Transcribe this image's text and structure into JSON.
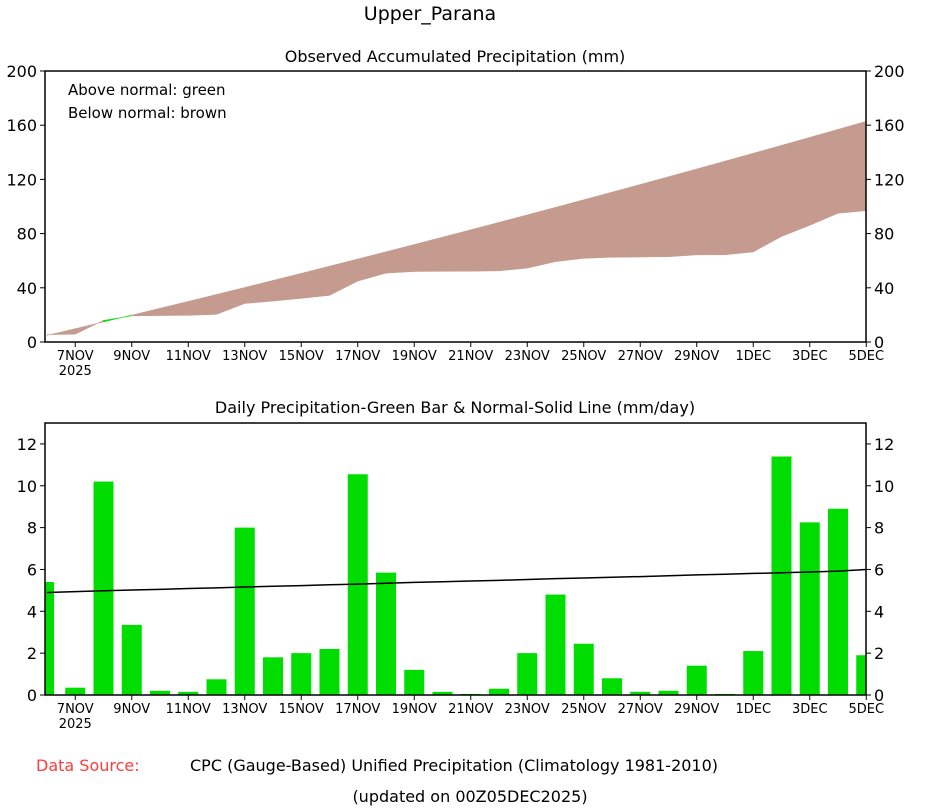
{
  "title": "Upper_Parana",
  "footer": {
    "source_label": "Data Source:",
    "source_text": "CPC (Gauge-Based) Unified Precipitation (Climatology 1981-2010)",
    "updated": "(updated on 00Z05DEC2025)"
  },
  "colors": {
    "above": "#00dd00",
    "below": "#c59b8f",
    "bar": "#00dd00",
    "source_label": "#ff3b3b"
  },
  "chart_data": [
    {
      "type": "area",
      "title": "Observed Accumulated Precipitation (mm)",
      "legend": [
        "Above normal: green",
        "Below normal: brown"
      ],
      "legend_placement": "top-left",
      "ylim": [
        0,
        200
      ],
      "yticks": [
        0,
        40,
        80,
        120,
        160,
        200
      ],
      "xtick_labels": [
        "7NOV",
        "9NOV",
        "11NOV",
        "13NOV",
        "15NOV",
        "17NOV",
        "19NOV",
        "21NOV",
        "23NOV",
        "25NOV",
        "27NOV",
        "29NOV",
        "1DEC",
        "3DEC",
        "5DEC"
      ],
      "xtick_year": "2025",
      "series": [
        {
          "name": "Observed accumulated",
          "values": [
            5.4,
            5.75,
            15.95,
            19.3,
            19.5,
            19.65,
            20.4,
            28.4,
            30.2,
            32.2,
            34.4,
            44.95,
            50.8,
            52.0,
            52.15,
            52.2,
            52.5,
            54.5,
            59.3,
            61.75,
            62.55,
            62.7,
            62.9,
            64.3,
            64.35,
            66.45,
            77.85,
            86.1,
            95.0,
            96.9
          ]
        },
        {
          "name": "Normal accumulated",
          "values": [
            4.9,
            9.84,
            14.82,
            19.84,
            24.89,
            29.98,
            35.1,
            40.26,
            45.46,
            50.69,
            55.96,
            61.26,
            66.6,
            71.98,
            77.39,
            82.84,
            88.32,
            93.84,
            99.4,
            104.99,
            110.62,
            116.28,
            121.98,
            127.72,
            133.49,
            139.3,
            145.14,
            151.02,
            156.94,
            162.9
          ]
        }
      ]
    },
    {
      "type": "bar",
      "title": "Daily Precipitation-Green Bar & Normal-Solid Line (mm/day)",
      "ylim": [
        0,
        13
      ],
      "yticks": [
        0,
        2,
        4,
        6,
        8,
        10,
        12
      ],
      "x": [
        "6NOV",
        "7NOV",
        "8NOV",
        "9NOV",
        "10NOV",
        "11NOV",
        "12NOV",
        "13NOV",
        "14NOV",
        "15NOV",
        "16NOV",
        "17NOV",
        "18NOV",
        "19NOV",
        "20NOV",
        "21NOV",
        "22NOV",
        "23NOV",
        "24NOV",
        "25NOV",
        "26NOV",
        "27NOV",
        "28NOV",
        "29NOV",
        "30NOV",
        "1DEC",
        "2DEC",
        "3DEC",
        "4DEC",
        "5DEC"
      ],
      "xtick_labels": [
        "7NOV",
        "9NOV",
        "11NOV",
        "13NOV",
        "15NOV",
        "17NOV",
        "19NOV",
        "21NOV",
        "23NOV",
        "25NOV",
        "27NOV",
        "29NOV",
        "1DEC",
        "3DEC",
        "5DEC"
      ],
      "xtick_year": "2025",
      "series": [
        {
          "name": "Daily precipitation",
          "values": [
            5.4,
            0.35,
            10.2,
            3.35,
            0.2,
            0.15,
            0.75,
            8.0,
            1.8,
            2.0,
            2.2,
            10.55,
            5.85,
            1.2,
            0.15,
            0.05,
            0.3,
            2.0,
            4.8,
            2.45,
            0.8,
            0.15,
            0.2,
            1.4,
            0.05,
            2.1,
            11.4,
            8.25,
            8.9,
            1.9
          ]
        },
        {
          "name": "Normal",
          "values": [
            4.9,
            4.94,
            4.98,
            5.02,
            5.05,
            5.09,
            5.12,
            5.16,
            5.2,
            5.23,
            5.27,
            5.3,
            5.34,
            5.38,
            5.41,
            5.45,
            5.48,
            5.52,
            5.56,
            5.59,
            5.63,
            5.66,
            5.7,
            5.74,
            5.77,
            5.81,
            5.84,
            5.88,
            5.92,
            6.0
          ]
        }
      ]
    }
  ]
}
